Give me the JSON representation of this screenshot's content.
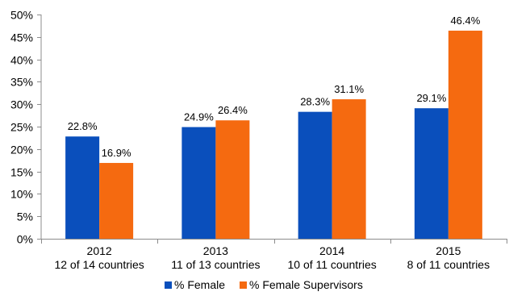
{
  "chart_data": {
    "type": "bar",
    "categories": [
      [
        "2012",
        "12 of 14 countries"
      ],
      [
        "2013",
        "11 of 13 countries"
      ],
      [
        "2014",
        "10 of 11 countries"
      ],
      [
        "2015",
        "8 of 11 countries"
      ]
    ],
    "series": [
      {
        "name": "% Female",
        "color": "#0a4fbc",
        "values": [
          22.8,
          24.9,
          28.3,
          29.1
        ],
        "labels": [
          "22.8%",
          "24.9%",
          "28.3%",
          "29.1%"
        ]
      },
      {
        "name": "% Female Supervisors",
        "color": "#f56a10",
        "values": [
          16.9,
          26.4,
          31.1,
          46.4
        ],
        "labels": [
          "16.9%",
          "26.4%",
          "31.1%",
          "46.4%"
        ]
      }
    ],
    "ylim": [
      0,
      50
    ],
    "yticks": [
      0,
      5,
      10,
      15,
      20,
      25,
      30,
      35,
      40,
      45,
      50
    ],
    "ytick_labels": [
      "0%",
      "5%",
      "10%",
      "15%",
      "20%",
      "25%",
      "30%",
      "35%",
      "40%",
      "45%",
      "50%"
    ],
    "grid": false,
    "legend_position": "bottom",
    "title": "",
    "xlabel": "",
    "ylabel": ""
  }
}
